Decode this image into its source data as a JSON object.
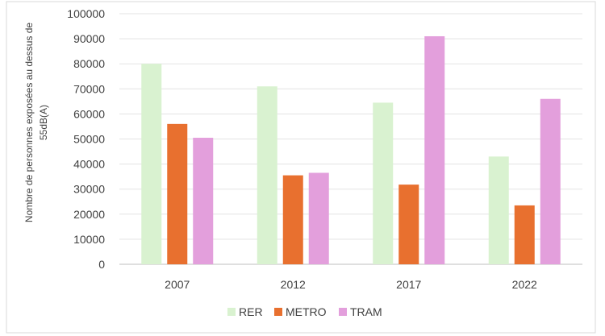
{
  "chart_data": {
    "type": "bar",
    "categories": [
      "2007",
      "2012",
      "2017",
      "2022"
    ],
    "series": [
      {
        "name": "RER",
        "color": "#d9f2d0",
        "values": [
          80000,
          71000,
          64500,
          43000
        ]
      },
      {
        "name": "METRO",
        "color": "#e8702f",
        "values": [
          56000,
          35500,
          31800,
          23500
        ]
      },
      {
        "name": "TRAM",
        "color": "#e39fdc",
        "values": [
          50500,
          36500,
          91000,
          66000
        ]
      }
    ],
    "ylabel_lines": [
      "Nombre de personnes exposées au dessus de",
      "55dB(A)"
    ],
    "ylim": [
      0,
      100000
    ],
    "yticks": [
      0,
      10000,
      20000,
      30000,
      40000,
      50000,
      60000,
      70000,
      80000,
      90000,
      100000
    ],
    "grid": true,
    "legend_position": "bottom"
  }
}
